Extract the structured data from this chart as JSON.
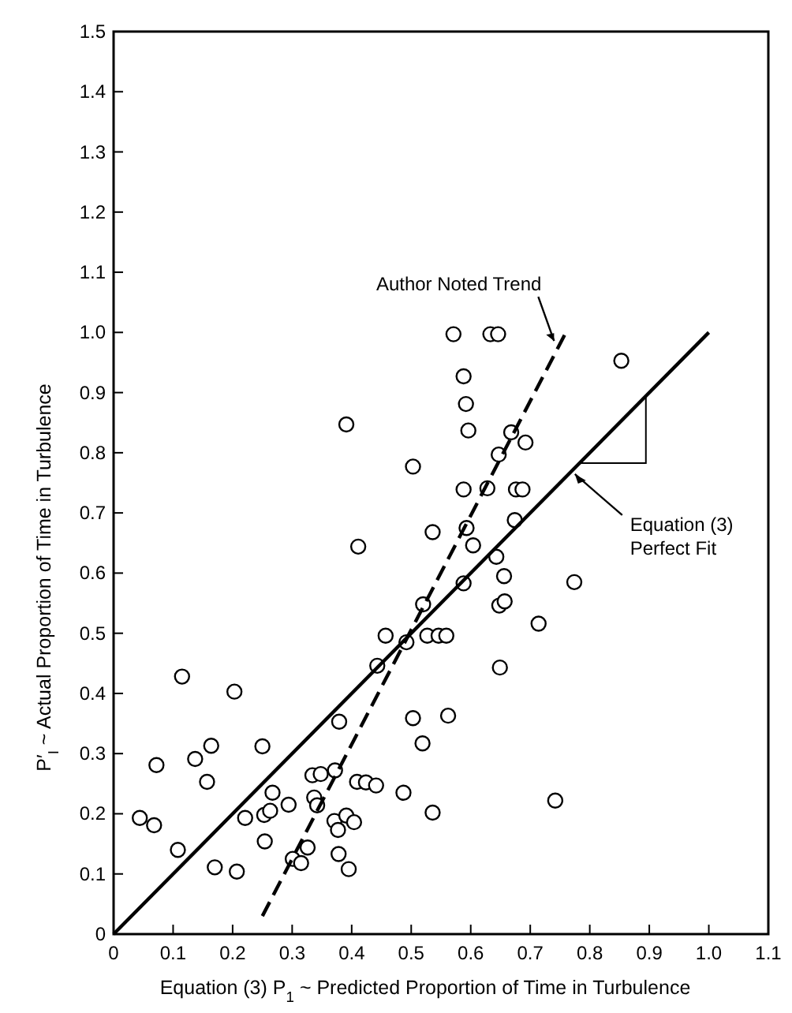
{
  "chart_data": {
    "type": "scatter",
    "xlabel": "Equation (3) P$_{1}$ ~ Predicted Proportion of Time in Turbulence",
    "ylabel": "P′$_{I}$ ~ Actual Proportion of Time in Turbulence",
    "xlim": [
      0,
      1.1
    ],
    "ylim": [
      0,
      1.5
    ],
    "xticks": [
      0,
      0.1,
      0.2,
      0.3,
      0.4,
      0.5,
      0.6,
      0.7,
      0.8,
      0.9,
      {
        "value": 1,
        "label": "1.0"
      },
      1.1
    ],
    "yticks": [
      0,
      0.1,
      0.2,
      0.3,
      0.4,
      0.5,
      0.6,
      0.7,
      0.8,
      0.9,
      {
        "value": 1,
        "label": "1.0"
      },
      1.1,
      1.2,
      1.3,
      1.4,
      1.5
    ],
    "grid": false,
    "series": [
      {
        "marker": "circle",
        "color": "#000000",
        "x": [
          0.044,
          0.068,
          0.115,
          0.072,
          0.108,
          0.137,
          0.164,
          0.157,
          0.17,
          0.203,
          0.207,
          0.221,
          0.25,
          0.253,
          0.263,
          0.267,
          0.254,
          0.294,
          0.334,
          0.348,
          0.372,
          0.379,
          0.337,
          0.342,
          0.301,
          0.315,
          0.326,
          0.371,
          0.377,
          0.391,
          0.404,
          0.378,
          0.395,
          0.409,
          0.424,
          0.441,
          0.443,
          0.457,
          0.492,
          0.487,
          0.503,
          0.519,
          0.536,
          0.52,
          0.527,
          0.546,
          0.559,
          0.562,
          0.656,
          0.774,
          0.588,
          0.648,
          0.657,
          0.714,
          0.649,
          0.742,
          0.571,
          0.633,
          0.646,
          0.853,
          0.588,
          0.592,
          0.596,
          0.668,
          0.692,
          0.647,
          0.503,
          0.588,
          0.628,
          0.676,
          0.687,
          0.536,
          0.593,
          0.674,
          0.604,
          0.643,
          0.391,
          0.411
        ],
        "values": [
          0.193,
          0.181,
          0.428,
          0.281,
          0.14,
          0.291,
          0.313,
          0.253,
          0.111,
          0.403,
          0.104,
          0.193,
          0.312,
          0.198,
          0.205,
          0.235,
          0.154,
          0.215,
          0.264,
          0.266,
          0.272,
          0.353,
          0.227,
          0.214,
          0.125,
          0.118,
          0.144,
          0.188,
          0.173,
          0.197,
          0.186,
          0.133,
          0.108,
          0.253,
          0.252,
          0.247,
          0.446,
          0.496,
          0.485,
          0.235,
          0.359,
          0.317,
          0.202,
          0.548,
          0.496,
          0.496,
          0.496,
          0.363,
          0.595,
          0.585,
          0.583,
          0.546,
          0.553,
          0.516,
          0.443,
          0.222,
          0.997,
          0.997,
          0.997,
          0.953,
          0.927,
          0.881,
          0.837,
          0.834,
          0.817,
          0.797,
          0.777,
          0.739,
          0.741,
          0.739,
          0.739,
          0.668,
          0.675,
          0.688,
          0.646,
          0.627,
          0.847,
          0.644
        ]
      },
      {
        "type": "line",
        "color": "#000000",
        "line_style": "solid",
        "x": [
          0,
          1
        ],
        "values": [
          0,
          1
        ]
      },
      {
        "type": "line",
        "color": "#000000",
        "line_style": "dashed",
        "x": [
          0.25,
          0.76
        ],
        "values": [
          0.03,
          1.0
        ]
      }
    ],
    "annotations": [
      {
        "text": "Author Noted Trend",
        "x": 0.74,
        "y": 0.97
      },
      {
        "text": "Equation (3) Perfect Fit",
        "x": 0.775,
        "y": 0.775
      }
    ]
  }
}
